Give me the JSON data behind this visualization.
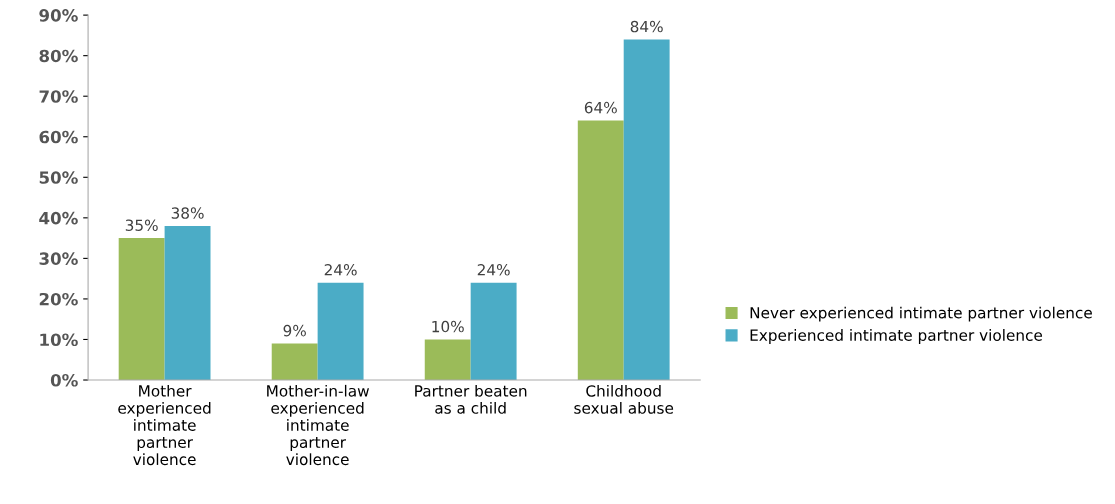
{
  "chart_data": {
    "type": "bar",
    "categories": [
      "Mother\nexperienced\nintimate\npartner\nviolence",
      "Mother-in-law\nexperienced\nintimate\npartner\nviolence",
      "Partner beaten\nas a child",
      "Childhood\nsexual abuse"
    ],
    "series": [
      {
        "name": "Never experienced intimate partner violence",
        "color": "#9bbb59",
        "values": [
          35,
          9,
          10,
          64
        ],
        "value_labels": [
          "35%",
          "9%",
          "10%",
          "64%"
        ]
      },
      {
        "name": "Experienced intimate partner violence",
        "color": "#4bacc6",
        "values": [
          38,
          24,
          24,
          84
        ],
        "value_labels": [
          "38%",
          "24%",
          "24%",
          "84%"
        ]
      }
    ],
    "ylim": [
      0,
      90
    ],
    "yticks": [
      {
        "value": 0,
        "label": "0%"
      },
      {
        "value": 10,
        "label": "10%"
      },
      {
        "value": 20,
        "label": "20%"
      },
      {
        "value": 30,
        "label": "30%"
      },
      {
        "value": 40,
        "label": "40%"
      },
      {
        "value": 50,
        "label": "50%"
      },
      {
        "value": 60,
        "label": "60%"
      },
      {
        "value": 70,
        "label": "70%"
      },
      {
        "value": 80,
        "label": "80%"
      },
      {
        "value": 90,
        "label": "90%"
      }
    ],
    "grid": false,
    "legend": "right"
  }
}
